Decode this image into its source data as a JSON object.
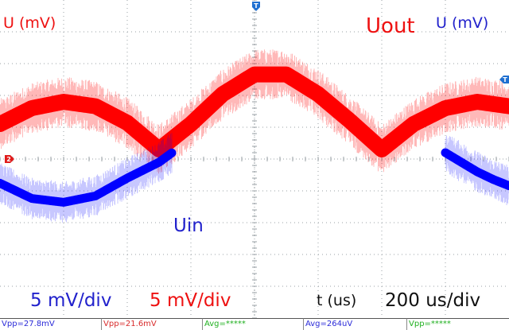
{
  "labels": {
    "u_mv_left": "U (mV)",
    "u_mv_right": "U (mV)",
    "uout": "Uout",
    "uin": "Uin",
    "scale_ch1": "5 mV/div",
    "scale_ch2": "5 mV/div",
    "t_axis": "t (us)",
    "timebase": "200 us/div"
  },
  "markers": {
    "trigger_top": "T",
    "trigger_right": "T",
    "ch2_left": "2"
  },
  "measurements": [
    {
      "text": "Vpp=27.8mV",
      "color": "#2a2ad8"
    },
    {
      "text": "Vpp=21.6mV",
      "color": "#d82a2a"
    },
    {
      "text": "Avg=*****",
      "color": "#20b020"
    },
    {
      "text": "Avg=264uV",
      "color": "#2a2ad8"
    },
    {
      "text": "Vpp=*****",
      "color": "#20b020"
    }
  ],
  "colors": {
    "uin_trace": "#0000ff",
    "uout_trace": "#ff0000",
    "uin_label": "#2222cc",
    "uout_label": "#ee1111",
    "scale_ch1": "#2222cc",
    "scale_ch2": "#ee1111",
    "grid": "#9aa0a6",
    "marker": "#1f6fd0",
    "marker_ch2": "#e01b1b"
  },
  "chart_data": {
    "type": "line",
    "xlabel": "t (us)",
    "ylabel": "U (mV)",
    "timebase": "200 us/div",
    "x_divisions": 8,
    "y_divisions": 5,
    "grid": true,
    "series": [
      {
        "name": "Uout",
        "color": "#ff0000",
        "scale": "5 mV/div",
        "x": [
          0,
          100,
          200,
          300,
          400,
          500,
          600,
          700,
          800,
          900,
          1000,
          1100,
          1200,
          1300,
          1400,
          1500,
          1600
        ],
        "y": [
          5.5,
          8.0,
          9.0,
          8.3,
          5.7,
          1.5,
          5.5,
          10.2,
          13.3,
          13.3,
          10.2,
          6.0,
          1.5,
          5.5,
          8.0,
          9.0,
          8.3
        ]
      },
      {
        "name": "Uin",
        "color": "#0000ff",
        "scale": "5 mV/div",
        "x": [
          0,
          100,
          200,
          300,
          400,
          500,
          541
        ],
        "y": [
          -3.8,
          -6.2,
          -6.8,
          -5.8,
          -3.0,
          -0.5,
          1.0
        ]
      },
      {
        "name": "Uin",
        "color": "#0000ff",
        "scale": "5 mV/div",
        "x": [
          1400,
          1450,
          1500,
          1550,
          1600
        ],
        "y": [
          1.0,
          -0.5,
          -2.0,
          -3.2,
          -4.2
        ]
      }
    ]
  }
}
